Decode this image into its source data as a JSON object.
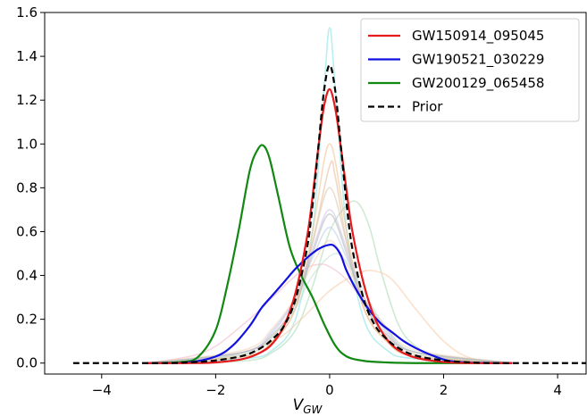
{
  "chart_data": {
    "type": "line",
    "title": "",
    "xlabel": {
      "main": "V",
      "sub": "GW"
    },
    "ylabel": "",
    "xlim": [
      -5,
      4.5
    ],
    "ylim": [
      -0.05,
      1.6
    ],
    "xticks": [
      -4,
      -2,
      0,
      2,
      4
    ],
    "xtick_labels": [
      "−4",
      "−2",
      "0",
      "2",
      "4"
    ],
    "yticks": [
      0.0,
      0.2,
      0.4,
      0.6,
      0.8,
      1.0,
      1.2,
      1.4,
      1.6
    ],
    "ytick_labels": [
      "0.0",
      "0.2",
      "0.4",
      "0.6",
      "0.8",
      "1.0",
      "1.2",
      "1.4",
      "1.6"
    ],
    "grid": false,
    "legend_position": "top-right",
    "series": [
      {
        "name": "GW150914_095045",
        "color": "#e41a1c",
        "dash": "solid",
        "x": [
          -3.2,
          -2.5,
          -2.0,
          -1.5,
          -1.2,
          -1.0,
          -0.8,
          -0.6,
          -0.4,
          -0.3,
          -0.2,
          -0.1,
          0.0,
          0.1,
          0.2,
          0.3,
          0.4,
          0.6,
          0.8,
          1.0,
          1.2,
          1.5,
          2.0,
          2.5,
          3.2
        ],
        "y": [
          0.0,
          0.0,
          0.003,
          0.02,
          0.05,
          0.09,
          0.17,
          0.32,
          0.57,
          0.76,
          0.98,
          1.17,
          1.25,
          1.16,
          0.98,
          0.78,
          0.6,
          0.36,
          0.2,
          0.11,
          0.06,
          0.025,
          0.005,
          0.0,
          0.0
        ]
      },
      {
        "name": "GW190521_030229",
        "color": "#1010e0",
        "dash": "solid",
        "x": [
          -3.2,
          -2.5,
          -2.0,
          -1.7,
          -1.4,
          -1.2,
          -1.0,
          -0.8,
          -0.6,
          -0.4,
          -0.2,
          0.0,
          0.1,
          0.2,
          0.3,
          0.5,
          0.7,
          0.9,
          1.1,
          1.3,
          1.5,
          1.8,
          2.1,
          2.5,
          3.2
        ],
        "y": [
          0.0,
          0.003,
          0.03,
          0.08,
          0.17,
          0.25,
          0.31,
          0.37,
          0.43,
          0.48,
          0.52,
          0.54,
          0.53,
          0.49,
          0.42,
          0.32,
          0.24,
          0.18,
          0.14,
          0.1,
          0.07,
          0.035,
          0.01,
          0.002,
          0.0
        ]
      },
      {
        "name": "GW200129_065458",
        "color": "#118811",
        "dash": "solid",
        "x": [
          -3.2,
          -2.6,
          -2.3,
          -2.0,
          -1.8,
          -1.6,
          -1.4,
          -1.25,
          -1.15,
          -1.05,
          -0.9,
          -0.7,
          -0.5,
          -0.3,
          -0.1,
          0.1,
          0.3,
          0.6,
          1.0,
          1.5,
          2.0,
          3.2
        ],
        "y": [
          0.0,
          0.005,
          0.03,
          0.15,
          0.35,
          0.6,
          0.88,
          0.98,
          0.99,
          0.93,
          0.76,
          0.53,
          0.4,
          0.3,
          0.18,
          0.08,
          0.03,
          0.01,
          0.003,
          0.0,
          0.0,
          0.0
        ]
      },
      {
        "name": "Prior",
        "color": "#000000",
        "dash": "dashed",
        "x": [
          -4.5,
          -3.0,
          -2.5,
          -2.0,
          -1.5,
          -1.2,
          -1.0,
          -0.8,
          -0.6,
          -0.4,
          -0.3,
          -0.2,
          -0.1,
          0.0,
          0.1,
          0.2,
          0.3,
          0.4,
          0.6,
          0.8,
          1.0,
          1.2,
          1.5,
          2.0,
          2.5,
          3.0,
          4.5
        ],
        "y": [
          0.0,
          0.0,
          0.003,
          0.012,
          0.035,
          0.07,
          0.11,
          0.17,
          0.29,
          0.52,
          0.72,
          0.98,
          1.24,
          1.36,
          1.24,
          0.98,
          0.72,
          0.52,
          0.29,
          0.17,
          0.11,
          0.07,
          0.035,
          0.012,
          0.003,
          0.0,
          0.0
        ]
      }
    ],
    "background_series": [
      {
        "color": "#7fe0e0",
        "x": [
          -3.2,
          -1.5,
          -1.0,
          -0.6,
          -0.3,
          -0.1,
          0.0,
          0.1,
          0.3,
          0.6,
          1.0,
          1.5,
          3.2
        ],
        "y": [
          0.0,
          0.02,
          0.06,
          0.2,
          0.6,
          1.25,
          1.53,
          1.25,
          0.6,
          0.2,
          0.06,
          0.02,
          0.0
        ]
      },
      {
        "color": "#a8d8b0",
        "x": [
          -3.2,
          -1.5,
          -1.0,
          -0.6,
          -0.3,
          0.0,
          0.3,
          0.5,
          0.7,
          0.9,
          1.2,
          1.5,
          2.0,
          3.2
        ],
        "y": [
          0.0,
          0.01,
          0.05,
          0.15,
          0.35,
          0.6,
          0.72,
          0.73,
          0.62,
          0.42,
          0.18,
          0.08,
          0.02,
          0.0
        ]
      },
      {
        "color": "#f8c8a0",
        "x": [
          -3.2,
          -2.0,
          -1.0,
          -0.5,
          0.0,
          0.5,
          0.8,
          1.1,
          1.5,
          2.0,
          2.5,
          3.2
        ],
        "y": [
          0.0,
          0.02,
          0.1,
          0.2,
          0.33,
          0.41,
          0.42,
          0.38,
          0.25,
          0.1,
          0.02,
          0.0
        ]
      },
      {
        "color": "#f0b8c8",
        "x": [
          -3.2,
          -2.2,
          -1.5,
          -1.0,
          -0.5,
          -0.2,
          0.0,
          0.3,
          0.7,
          1.2,
          1.8,
          2.5,
          3.2
        ],
        "y": [
          0.0,
          0.05,
          0.18,
          0.3,
          0.42,
          0.45,
          0.44,
          0.38,
          0.25,
          0.12,
          0.04,
          0.01,
          0.0
        ]
      },
      {
        "color": "#f3c08a",
        "x": [
          -3.2,
          -1.5,
          -1.0,
          -0.6,
          -0.3,
          -0.1,
          0.0,
          0.1,
          0.3,
          0.6,
          1.0,
          1.5,
          3.2
        ],
        "y": [
          0.0,
          0.03,
          0.1,
          0.25,
          0.6,
          0.92,
          1.0,
          0.92,
          0.6,
          0.25,
          0.1,
          0.03,
          0.0
        ]
      },
      {
        "color": "#e6b896",
        "x": [
          -3.2,
          -1.5,
          -1.0,
          -0.6,
          -0.3,
          0.0,
          0.1,
          0.3,
          0.6,
          1.0,
          1.5,
          3.2
        ],
        "y": [
          0.0,
          0.03,
          0.1,
          0.25,
          0.55,
          0.9,
          0.85,
          0.55,
          0.25,
          0.1,
          0.03,
          0.0
        ]
      },
      {
        "color": "#d9c4a8",
        "x": [
          -3.2,
          -1.5,
          -1.0,
          -0.6,
          -0.3,
          0.0,
          0.3,
          0.6,
          1.0,
          1.5,
          3.2
        ],
        "y": [
          0.0,
          0.04,
          0.12,
          0.28,
          0.55,
          0.8,
          0.55,
          0.28,
          0.12,
          0.04,
          0.0
        ]
      },
      {
        "color": "#c8c0e8",
        "x": [
          -3.2,
          -1.5,
          -1.0,
          -0.6,
          -0.3,
          0.0,
          0.3,
          0.6,
          1.0,
          1.5,
          3.2
        ],
        "y": [
          0.0,
          0.05,
          0.14,
          0.3,
          0.52,
          0.7,
          0.52,
          0.3,
          0.14,
          0.05,
          0.0
        ]
      },
      {
        "color": "#b8cce8",
        "x": [
          -3.2,
          -1.5,
          -1.0,
          -0.6,
          -0.3,
          0.0,
          0.3,
          0.6,
          1.0,
          1.5,
          3.2
        ],
        "y": [
          0.0,
          0.05,
          0.15,
          0.3,
          0.48,
          0.62,
          0.48,
          0.3,
          0.15,
          0.05,
          0.0
        ]
      },
      {
        "color": "#f4d0b0",
        "x": [
          -3.2,
          -1.5,
          -1.0,
          -0.6,
          -0.3,
          0.0,
          0.3,
          0.6,
          1.0,
          1.5,
          3.2
        ],
        "y": [
          0.0,
          0.06,
          0.16,
          0.3,
          0.45,
          0.56,
          0.45,
          0.3,
          0.16,
          0.06,
          0.0
        ]
      },
      {
        "color": "#c0dcd0",
        "x": [
          -3.2,
          -1.5,
          -1.0,
          -0.6,
          -0.3,
          0.1,
          0.4,
          0.7,
          1.0,
          1.5,
          3.2
        ],
        "y": [
          0.0,
          0.04,
          0.12,
          0.25,
          0.4,
          0.5,
          0.42,
          0.28,
          0.16,
          0.05,
          0.0
        ]
      },
      {
        "color": "#b0b0b0",
        "x": [
          -3.2,
          -1.5,
          -1.0,
          -0.6,
          -0.3,
          0.0,
          0.3,
          0.6,
          1.0,
          1.5,
          3.2
        ],
        "y": [
          0.0,
          0.05,
          0.13,
          0.27,
          0.5,
          0.68,
          0.5,
          0.27,
          0.13,
          0.05,
          0.0
        ]
      }
    ]
  }
}
